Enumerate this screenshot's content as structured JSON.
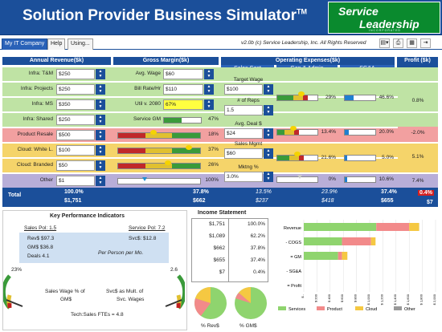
{
  "header": {
    "title": "Solution Provider Business Simulator",
    "tm": "TM",
    "logo_line1": "Service",
    "logo_line2": "Leadership",
    "logo_line3": "INCORPORATED"
  },
  "tabs": [
    {
      "label": "My IT Company"
    },
    {
      "label": "Help"
    },
    {
      "label": "Using..."
    }
  ],
  "toolbar": {
    "version": "v2.0b (c) Service Leadership, Inc. All Rights Reserved",
    "icons": [
      "file-export-icon",
      "print-icon",
      "calculator-icon",
      "exit-icon"
    ]
  },
  "sections": {
    "revenue": "Annual Revenue($k)",
    "gm": "Gross Margin($k)",
    "opex": "Operating Expenses($k)",
    "profit": "Profit ($k)",
    "sales_cost": "Sales Cost",
    "gen_admin": "Gen & Admin",
    "sga": "SG&A"
  },
  "revenue_rows": [
    {
      "label": "Infra: T&M",
      "value": "$250",
      "band": "#bfe3a4"
    },
    {
      "label": "Infra: Projects",
      "value": "$250",
      "band": "#bfe3a4"
    },
    {
      "label": "Infra: MS",
      "value": "$350",
      "band": "#bfe3a4"
    },
    {
      "label": "Infra: Shared",
      "value": "$250",
      "band": "#bfe3a4"
    },
    {
      "label": "Product Resale",
      "value": "$500",
      "band": "#f2a0a0"
    },
    {
      "label": "Cloud: White L.",
      "value": "$100",
      "band": "#f5d46a"
    },
    {
      "label": "Cloud: Branded",
      "value": "$50",
      "band": "#f5d46a"
    },
    {
      "label": "Other",
      "value": "$1",
      "band": "#b8aed8"
    }
  ],
  "gm_inputs": [
    {
      "label": "Avg. Wage",
      "value": "$60"
    },
    {
      "label": "Bill Rate/Hr",
      "value": "$110"
    },
    {
      "label": "Util v. 2080",
      "value": "67%"
    },
    {
      "label": "Service GM",
      "value": ""
    }
  ],
  "gm_service_pct": "47%",
  "gm_bars": [
    {
      "pct": "18%",
      "fill": 0.18
    },
    {
      "pct": "37%",
      "fill": 0.37
    },
    {
      "pct": "26%",
      "fill": 0.26
    },
    {
      "pct": "100%",
      "fill": 1.0
    }
  ],
  "opex_inputs": [
    {
      "label": "Target Wage",
      "value": "$100"
    },
    {
      "label": "# of Reps",
      "value": "1.5"
    },
    {
      "label": "Avg. Deal $",
      "value": "$24"
    },
    {
      "label": "Sales Mgmt",
      "value": "$60"
    },
    {
      "label": "Mktng %",
      "value": "3.0%"
    }
  ],
  "opex_rows": [
    {
      "sales_pct": "29%",
      "sga_pct": "46.6%",
      "fill": 0.29,
      "sga_fill": 0.466
    },
    {
      "sales_pct": "13.4%",
      "sga_pct": "20.0%",
      "fill": 0.134,
      "sga_fill": 0.2
    },
    {
      "sales_pct": "21.6%",
      "sga_pct": "5.0%",
      "fill": 0.216,
      "sga_fill": 0.05
    },
    {
      "sales_pct": "0%",
      "sga_pct": "10.6%",
      "fill": 0.0,
      "sga_fill": 0.106
    }
  ],
  "profit_col": [
    "0.8%",
    "-2.0%",
    "5.1%",
    "7.4%"
  ],
  "totals": {
    "label": "Total",
    "rev_pct": "100.0%",
    "rev_amt": "$1,751",
    "gm_pct": "37.8%",
    "gm_amt": "$662",
    "sales_pct": "13.5%",
    "sales_amt": "$237",
    "ga_pct": "23.9%",
    "ga_amt": "$418",
    "sga_pct": "37.4%",
    "sga_amt": "$655",
    "profit_pct": "0.4%",
    "profit_amt": "$7"
  },
  "kpi": {
    "title": "Key Performance Indicators",
    "sales_pol": "Sales Pol: 1.5",
    "service_pol": "Service Pol: 7.2",
    "rev": "Rev$ $97.3",
    "gm": "GM$ $36.8",
    "deals": "Deals 4.1",
    "svc": "Svc$: $12.8",
    "per_person": "Per Person per Mo.",
    "gauge1_val": "23%",
    "gauge1_label1": "Sales Wage % of",
    "gauge1_label2": "GM$",
    "gauge2_val": "2.6",
    "gauge2_label1": "Svc$ as Mult. of",
    "gauge2_label2": "Svc. Wages",
    "tech_ratio": "Tech:Sales FTEs = 4.8"
  },
  "income": {
    "title": "Income Statement",
    "rows": [
      [
        "$1,751",
        "100.0%"
      ],
      [
        "$1,089",
        "62.2%"
      ],
      [
        "$662",
        "37.8%"
      ],
      [
        "$655",
        "37.4%"
      ],
      [
        "$7",
        "0.4%"
      ]
    ],
    "pie1_label": "% Rev$",
    "pie2_label": "% GM$"
  },
  "bar_chart": {
    "categories": [
      "Revenue",
      "- COGS",
      "= GM",
      "- SG&A",
      "= Profit"
    ],
    "x_ticks": [
      "$ -",
      "$ 200",
      "$ 400",
      "$ 600",
      "$ 800",
      "$ 1,000",
      "$ 1,200",
      "$ 1,400",
      "$ 1,600",
      "$ 1,800",
      "$ 2,000"
    ],
    "legend": [
      "Services",
      "Product",
      "Cloud",
      "Other"
    ],
    "colors": [
      "#8fd46e",
      "#f28a8a",
      "#f5c842",
      "#999999"
    ]
  },
  "chart_data": {
    "type": "bar",
    "orientation": "horizontal",
    "stacked": true,
    "categories": [
      "Revenue",
      "- COGS",
      "= GM",
      "- SG&A",
      "= Profit"
    ],
    "series": [
      {
        "name": "Services",
        "values": [
          1100,
          580,
          520,
          0,
          0
        ]
      },
      {
        "name": "Product",
        "values": [
          500,
          440,
          60,
          0,
          0
        ]
      },
      {
        "name": "Cloud",
        "values": [
          150,
          69,
          81,
          0,
          0
        ]
      },
      {
        "name": "Other",
        "values": [
          1,
          0,
          1,
          0,
          0
        ]
      }
    ],
    "xlim": [
      0,
      2000
    ]
  }
}
